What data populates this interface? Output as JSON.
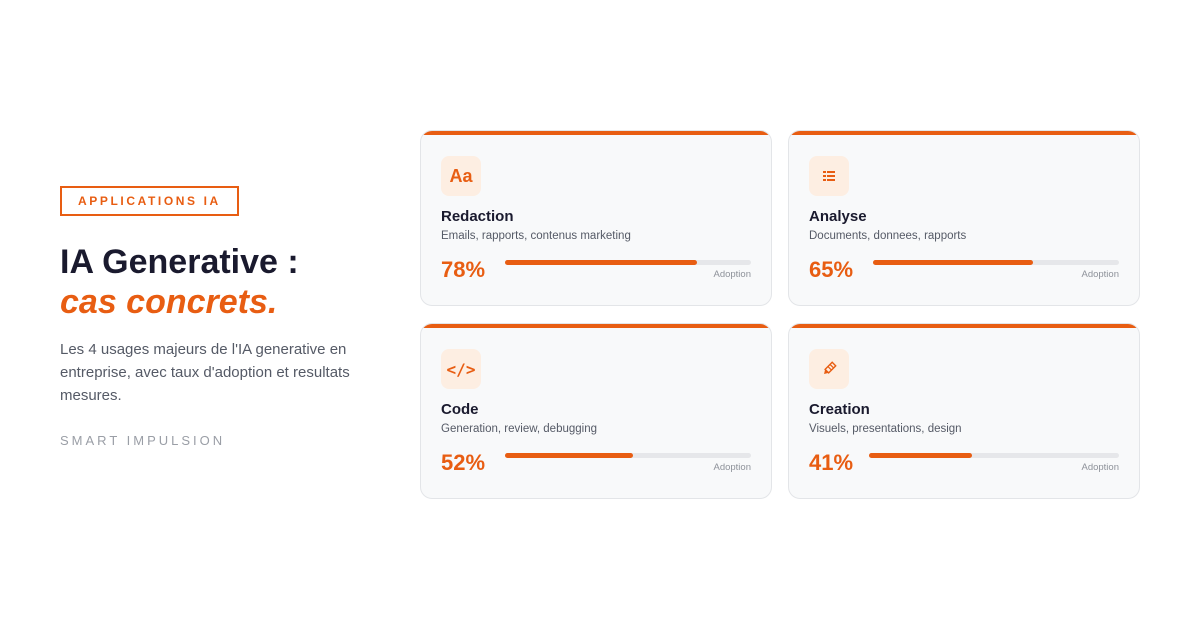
{
  "left": {
    "badge": "APPLICATIONS IA",
    "title_line1": "IA Generative :",
    "title_line2": "cas concrets.",
    "description": "Les 4 usages majeurs de l'IA generative en entreprise, avec taux d'adoption et resultats mesures.",
    "brand": "SMART IMPULSION"
  },
  "accent_color": "#e85d12",
  "cards": [
    {
      "icon": "text-format-icon",
      "icon_text": "Aa",
      "name": "Redaction",
      "subtitle": "Emails, rapports, contenus marketing",
      "percent_label": "78%",
      "adoption": 0.78,
      "bar_label": "Adoption"
    },
    {
      "icon": "list-icon",
      "name": "Analyse",
      "subtitle": "Documents, donnees, rapports",
      "percent_label": "65%",
      "adoption": 0.65,
      "bar_label": "Adoption"
    },
    {
      "icon": "code-icon",
      "icon_text": "</>",
      "name": "Code",
      "subtitle": "Generation, review, debugging",
      "percent_label": "52%",
      "adoption": 0.52,
      "bar_label": "Adoption"
    },
    {
      "icon": "pencil-icon",
      "name": "Creation",
      "subtitle": "Visuels, presentations, design",
      "percent_label": "41%",
      "adoption": 0.41,
      "bar_label": "Adoption"
    }
  ]
}
